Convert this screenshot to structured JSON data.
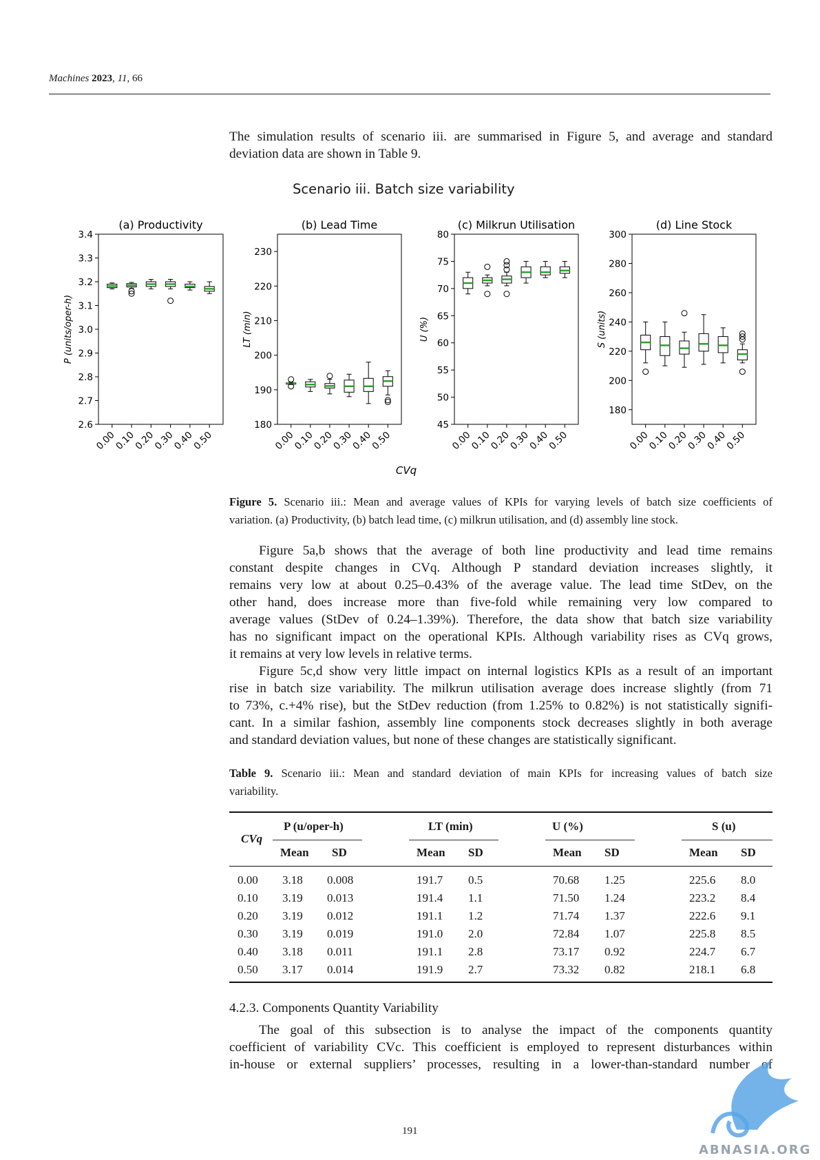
{
  "header": {
    "journal": "Machines",
    "year": "2023",
    "volume": "11",
    "article": "66"
  },
  "intro": {
    "lines": [
      "The simulation results of scenario iii. are summarised in Figure 5, and average and standard",
      "deviation data are shown in Table 9."
    ]
  },
  "figure": {
    "title": "Scenario iii. Batch size variability",
    "xlabel": "CVq",
    "caption_label": "Figure 5.",
    "caption_lines": [
      "Scenario iii.: Mean and average values of KPIs for varying levels of batch size coefficients of",
      "variation. (a) Productivity, (b) batch lead time, (c) milkrun utilisation, and (d) assembly line stock."
    ]
  },
  "chart_data": [
    {
      "type": "box",
      "title": "(a) Productivity",
      "ylabel": "P (units/oper-h)",
      "categories": [
        "0.00",
        "0.10",
        "0.20",
        "0.30",
        "0.40",
        "0.50"
      ],
      "ylim": [
        2.6,
        3.4
      ],
      "yticks": [
        "2.6",
        "2.7",
        "2.8",
        "2.9",
        "3.0",
        "3.1",
        "3.2",
        "3.3",
        "3.4"
      ],
      "boxes": [
        {
          "min": 3.17,
          "q1": 3.175,
          "median": 3.182,
          "q3": 3.19,
          "max": 3.195,
          "outliers": []
        },
        {
          "min": 3.172,
          "q1": 3.178,
          "median": 3.185,
          "q3": 3.192,
          "max": 3.197,
          "outliers": [
            3.16,
            3.15
          ]
        },
        {
          "min": 3.17,
          "q1": 3.18,
          "median": 3.19,
          "q3": 3.2,
          "max": 3.21,
          "outliers": []
        },
        {
          "min": 3.17,
          "q1": 3.18,
          "median": 3.19,
          "q3": 3.2,
          "max": 3.21,
          "outliers": [
            3.12
          ]
        },
        {
          "min": 3.165,
          "q1": 3.175,
          "median": 3.18,
          "q3": 3.19,
          "max": 3.2,
          "outliers": []
        },
        {
          "min": 3.15,
          "q1": 3.16,
          "median": 3.17,
          "q3": 3.18,
          "max": 3.2,
          "outliers": []
        }
      ]
    },
    {
      "type": "box",
      "title": "(b) Lead Time",
      "ylabel": "LT (min)",
      "categories": [
        "0.00",
        "0.10",
        "0.20",
        "0.30",
        "0.40",
        "0.50"
      ],
      "ylim": [
        180,
        235
      ],
      "yticks": [
        "180",
        "190",
        "200",
        "210",
        "220",
        "230"
      ],
      "boxes": [
        {
          "min": 191.5,
          "q1": 191.7,
          "median": 191.8,
          "q3": 192.0,
          "max": 192.2,
          "outliers": [
            193,
            191
          ]
        },
        {
          "min": 189.5,
          "q1": 190.8,
          "median": 191.5,
          "q3": 192.3,
          "max": 193.0,
          "outliers": []
        },
        {
          "min": 188.8,
          "q1": 190.5,
          "median": 191.1,
          "q3": 191.8,
          "max": 193.0,
          "outliers": [
            194
          ]
        },
        {
          "min": 188.0,
          "q1": 189.3,
          "median": 191.0,
          "q3": 192.8,
          "max": 194.5,
          "outliers": []
        },
        {
          "min": 186.0,
          "q1": 189.5,
          "median": 191.0,
          "q3": 193.3,
          "max": 198.0,
          "outliers": []
        },
        {
          "min": 188.5,
          "q1": 191.0,
          "median": 192.5,
          "q3": 193.8,
          "max": 195.5,
          "outliers": [
            186.5,
            187
          ]
        }
      ]
    },
    {
      "type": "box",
      "title": "(c) Milkrun Utilisation",
      "ylabel": "U (%)",
      "categories": [
        "0.00",
        "0.10",
        "0.20",
        "0.30",
        "0.40",
        "0.50"
      ],
      "ylim": [
        45,
        80
      ],
      "yticks": [
        "45",
        "50",
        "55",
        "60",
        "65",
        "70",
        "75",
        "80"
      ],
      "boxes": [
        {
          "min": 69.0,
          "q1": 70.0,
          "median": 71.0,
          "q3": 72.0,
          "max": 73.0,
          "outliers": []
        },
        {
          "min": 70.5,
          "q1": 71.0,
          "median": 71.5,
          "q3": 72.0,
          "max": 72.5,
          "outliers": [
            74,
            69
          ]
        },
        {
          "min": 70.5,
          "q1": 71.0,
          "median": 71.7,
          "q3": 72.3,
          "max": 73.0,
          "outliers": [
            75,
            74.3,
            73.5,
            69
          ]
        },
        {
          "min": 71.0,
          "q1": 72.0,
          "median": 73.0,
          "q3": 74.0,
          "max": 75.0,
          "outliers": []
        },
        {
          "min": 72.0,
          "q1": 72.5,
          "median": 73.0,
          "q3": 74.0,
          "max": 75.0,
          "outliers": []
        },
        {
          "min": 72.0,
          "q1": 72.8,
          "median": 73.3,
          "q3": 74.0,
          "max": 75.0,
          "outliers": []
        }
      ]
    },
    {
      "type": "box",
      "title": "(d) Line Stock",
      "ylabel": "S (units)",
      "categories": [
        "0.00",
        "0.10",
        "0.20",
        "0.30",
        "0.40",
        "0.50"
      ],
      "ylim": [
        170,
        300
      ],
      "yticks": [
        "180",
        "200",
        "220",
        "240",
        "260",
        "280",
        "300"
      ],
      "boxes": [
        {
          "min": 212,
          "q1": 221,
          "median": 226,
          "q3": 231,
          "max": 240,
          "outliers": [
            206
          ]
        },
        {
          "min": 210,
          "q1": 217,
          "median": 224,
          "q3": 230,
          "max": 240,
          "outliers": []
        },
        {
          "min": 209,
          "q1": 218,
          "median": 222,
          "q3": 227,
          "max": 233,
          "outliers": [
            246
          ]
        },
        {
          "min": 211,
          "q1": 220,
          "median": 225,
          "q3": 232,
          "max": 245,
          "outliers": []
        },
        {
          "min": 212,
          "q1": 219,
          "median": 224,
          "q3": 230,
          "max": 236,
          "outliers": []
        },
        {
          "min": 212,
          "q1": 214,
          "median": 218,
          "q3": 221,
          "max": 225,
          "outliers": [
            206,
            228,
            230,
            232
          ]
        }
      ]
    }
  ],
  "body": {
    "p1_lines": [
      "Figure 5a,b shows that the average of both line productivity and lead time remains",
      "constant despite changes in CVq. Although P standard deviation increases slightly, it",
      "remains very low at about 0.25–0.43% of the average value. The lead time StDev, on the",
      "other hand, does increase more than five-fold while remaining very low compared to",
      "average values (StDev of 0.24–1.39%). Therefore, the data show that batch size variability",
      "has no significant impact on the operational KPIs. Although variability rises as CVq grows,",
      "it remains at very low levels in relative terms."
    ],
    "p2_lines": [
      "Figure 5c,d show very little impact on internal logistics KPIs as a result of an important",
      "rise in batch size variability. The milkrun utilisation average does increase slightly (from 71",
      "to 73%, c.+4% rise), but the StDev reduction (from 1.25% to 0.82%) is not statistically signifi-",
      "cant. In a similar fashion, assembly line components stock decreases slightly in both average",
      "and standard deviation values, but none of these changes are statistically significant."
    ]
  },
  "table": {
    "caption_label": "Table 9.",
    "caption_lines": [
      "Scenario iii.: Mean and standard deviation of main KPIs for increasing values of batch size",
      "variability."
    ],
    "row_header": "CVq",
    "groups": [
      "P (u/oper-h)",
      "LT (min)",
      "U (%)",
      "S (u)"
    ],
    "subheads": [
      "Mean",
      "SD"
    ],
    "rows": [
      [
        "0.00",
        "3.18",
        "0.008",
        "191.7",
        "0.5",
        "70.68",
        "1.25",
        "225.6",
        "8.0"
      ],
      [
        "0.10",
        "3.19",
        "0.013",
        "191.4",
        "1.1",
        "71.50",
        "1.24",
        "223.2",
        "8.4"
      ],
      [
        "0.20",
        "3.19",
        "0.012",
        "191.1",
        "1.2",
        "71.74",
        "1.37",
        "222.6",
        "9.1"
      ],
      [
        "0.30",
        "3.19",
        "0.019",
        "191.0",
        "2.0",
        "72.84",
        "1.07",
        "225.8",
        "8.5"
      ],
      [
        "0.40",
        "3.18",
        "0.011",
        "191.1",
        "2.8",
        "73.17",
        "0.92",
        "224.7",
        "6.7"
      ],
      [
        "0.50",
        "3.17",
        "0.014",
        "191.9",
        "2.7",
        "73.32",
        "0.82",
        "218.1",
        "6.8"
      ]
    ]
  },
  "subsection": {
    "title": "4.2.3. Components Quantity Variability",
    "lines": [
      "The goal of this subsection is to analyse the impact of the components quantity",
      "coefficient of variability CVc. This coefficient is employed to represent disturbances within",
      "in-house or external suppliers’ processes, resulting in a lower-than-standard number of"
    ]
  },
  "page_number": "191",
  "watermark_text": "ABNASIA.ORG",
  "colors": {
    "median": "#2ca02c",
    "box": "#000000",
    "watermark": "#5aa6e6"
  }
}
